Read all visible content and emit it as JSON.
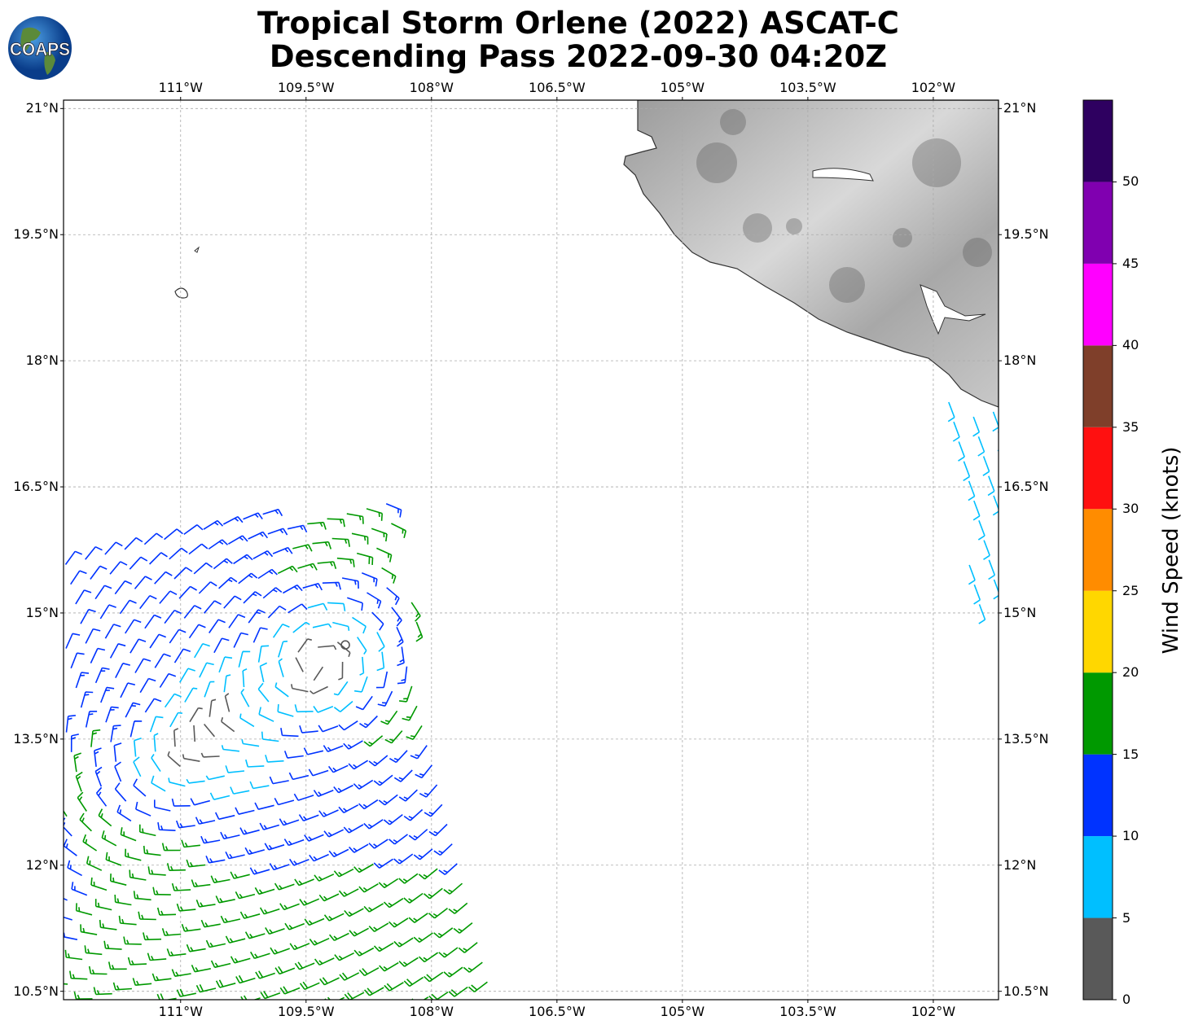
{
  "title": {
    "line1": "Tropical Storm Orlene (2022) ASCAT-C",
    "line2": "Descending Pass 2022-09-30 04:20Z"
  },
  "logo": {
    "text": "COAPS"
  },
  "map": {
    "lon_range": [
      -112.4,
      -101.22
    ],
    "lat_range": [
      10.4,
      21.1
    ],
    "lon_ticks": [
      {
        "value": -111,
        "label": "111°W"
      },
      {
        "value": -109.5,
        "label": "109.5°W"
      },
      {
        "value": -108,
        "label": "108°W"
      },
      {
        "value": -106.5,
        "label": "106.5°W"
      },
      {
        "value": -105,
        "label": "105°W"
      },
      {
        "value": -103.5,
        "label": "103.5°W"
      },
      {
        "value": -102,
        "label": "102°W"
      }
    ],
    "lat_ticks": [
      {
        "value": 21,
        "label": "21°N"
      },
      {
        "value": 19.5,
        "label": "19.5°N"
      },
      {
        "value": 18,
        "label": "18°N"
      },
      {
        "value": 16.5,
        "label": "16.5°N"
      },
      {
        "value": 15,
        "label": "15°N"
      },
      {
        "value": 13.5,
        "label": "13.5°N"
      },
      {
        "value": 12,
        "label": "12°N"
      },
      {
        "value": 10.5,
        "label": "10.5°N"
      }
    ],
    "gridlines": true,
    "storm_center": {
      "lon": -109.03,
      "lat": 14.62
    },
    "land_shading": "grayscale-topography"
  },
  "colorbar": {
    "label": "Wind Speed (knots)",
    "bounds": [
      0,
      5,
      10,
      15,
      20,
      25,
      30,
      35,
      40,
      45,
      50,
      55
    ],
    "tick_labels": [
      "0",
      "5",
      "10",
      "15",
      "20",
      "25",
      "30",
      "35",
      "40",
      "45",
      "50"
    ],
    "colors": [
      "#595959",
      "#00bfff",
      "#0033ff",
      "#009900",
      "#ffd700",
      "#ff8c00",
      "#ff1010",
      "#7f3f2a",
      "#ff00ff",
      "#8000b0",
      "#2e0060"
    ]
  }
}
